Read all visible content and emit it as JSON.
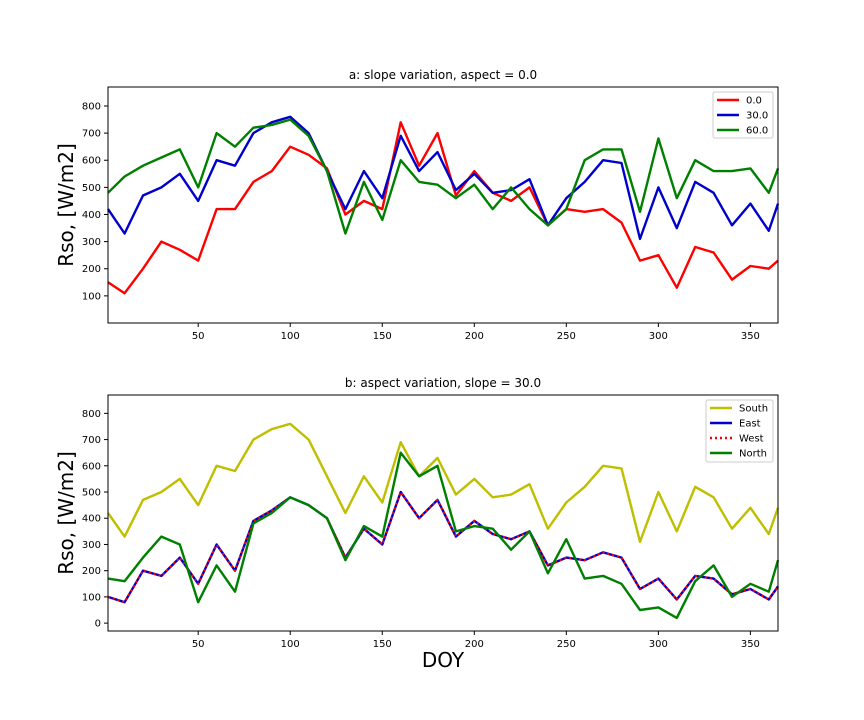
{
  "chart_data": [
    {
      "type": "line",
      "title": "a: slope variation, aspect = 0.0",
      "xlabel": "",
      "ylabel": "Rso, [W/m2]",
      "xlim": [
        1,
        365
      ],
      "ylim": [
        0,
        870
      ],
      "xticks": [
        50,
        100,
        150,
        200,
        250,
        300,
        350
      ],
      "yticks": [
        100,
        200,
        300,
        400,
        500,
        600,
        700,
        800
      ],
      "grid": false,
      "legend_position": "upper right",
      "x": [
        1,
        10,
        20,
        30,
        40,
        50,
        60,
        70,
        80,
        90,
        100,
        110,
        120,
        130,
        140,
        150,
        160,
        170,
        180,
        190,
        200,
        210,
        220,
        230,
        240,
        250,
        260,
        270,
        280,
        290,
        300,
        310,
        320,
        330,
        340,
        350,
        360,
        365
      ],
      "series": [
        {
          "name": "0.0",
          "color": "#ff0000",
          "style": "solid",
          "values": [
            150,
            110,
            200,
            300,
            270,
            230,
            420,
            420,
            520,
            560,
            650,
            620,
            570,
            400,
            450,
            420,
            740,
            580,
            700,
            470,
            560,
            480,
            450,
            500,
            360,
            420,
            410,
            420,
            370,
            230,
            250,
            130,
            280,
            260,
            160,
            210,
            200,
            230
          ]
        },
        {
          "name": "30.0",
          "color": "#0000cc",
          "style": "solid",
          "values": [
            420,
            330,
            470,
            500,
            550,
            450,
            600,
            580,
            700,
            740,
            760,
            700,
            560,
            420,
            560,
            460,
            690,
            560,
            630,
            490,
            550,
            480,
            490,
            530,
            360,
            460,
            520,
            600,
            590,
            310,
            500,
            350,
            520,
            480,
            360,
            440,
            340,
            440
          ]
        },
        {
          "name": "60.0",
          "color": "#008000",
          "style": "solid",
          "values": [
            480,
            540,
            580,
            610,
            640,
            500,
            700,
            650,
            720,
            730,
            750,
            690,
            560,
            330,
            520,
            380,
            600,
            520,
            510,
            460,
            510,
            420,
            500,
            420,
            360,
            420,
            600,
            640,
            640,
            410,
            680,
            460,
            600,
            560,
            560,
            570,
            480,
            570
          ]
        }
      ]
    },
    {
      "type": "line",
      "title": "b: aspect variation, slope = 30.0",
      "xlabel": "DOY",
      "ylabel": "Rso, [W/m2]",
      "xlim": [
        1,
        365
      ],
      "ylim": [
        -30,
        870
      ],
      "xticks": [
        50,
        100,
        150,
        200,
        250,
        300,
        350
      ],
      "yticks": [
        0,
        100,
        200,
        300,
        400,
        500,
        600,
        700,
        800
      ],
      "grid": false,
      "legend_position": "upper right",
      "x": [
        1,
        10,
        20,
        30,
        40,
        50,
        60,
        70,
        80,
        90,
        100,
        110,
        120,
        130,
        140,
        150,
        160,
        170,
        180,
        190,
        200,
        210,
        220,
        230,
        240,
        250,
        260,
        270,
        280,
        290,
        300,
        310,
        320,
        330,
        340,
        350,
        360,
        365
      ],
      "series": [
        {
          "name": "South",
          "color": "#bfbf00",
          "style": "solid",
          "values": [
            420,
            330,
            470,
            500,
            550,
            450,
            600,
            580,
            700,
            740,
            760,
            700,
            560,
            420,
            560,
            460,
            690,
            560,
            630,
            490,
            550,
            480,
            490,
            530,
            360,
            460,
            520,
            600,
            590,
            310,
            500,
            350,
            520,
            480,
            360,
            440,
            340,
            440
          ]
        },
        {
          "name": "East",
          "color": "#0000cc",
          "style": "solid",
          "values": [
            100,
            80,
            200,
            180,
            250,
            150,
            300,
            200,
            390,
            430,
            480,
            450,
            400,
            250,
            360,
            300,
            500,
            400,
            470,
            330,
            390,
            340,
            320,
            350,
            220,
            250,
            240,
            270,
            250,
            130,
            170,
            90,
            180,
            170,
            110,
            130,
            90,
            140
          ]
        },
        {
          "name": "West",
          "color": "#ff0000",
          "style": "dotted",
          "values": [
            100,
            80,
            200,
            180,
            250,
            150,
            300,
            200,
            390,
            430,
            480,
            450,
            400,
            250,
            360,
            300,
            500,
            400,
            470,
            330,
            390,
            340,
            320,
            350,
            220,
            250,
            240,
            270,
            250,
            130,
            170,
            90,
            180,
            170,
            110,
            130,
            90,
            140
          ]
        },
        {
          "name": "North",
          "color": "#008000",
          "style": "solid",
          "values": [
            170,
            160,
            250,
            330,
            300,
            80,
            220,
            120,
            380,
            420,
            480,
            450,
            400,
            240,
            370,
            330,
            650,
            560,
            600,
            350,
            370,
            360,
            280,
            350,
            190,
            320,
            170,
            180,
            150,
            50,
            60,
            20,
            160,
            220,
            100,
            150,
            120,
            240
          ]
        }
      ]
    }
  ]
}
